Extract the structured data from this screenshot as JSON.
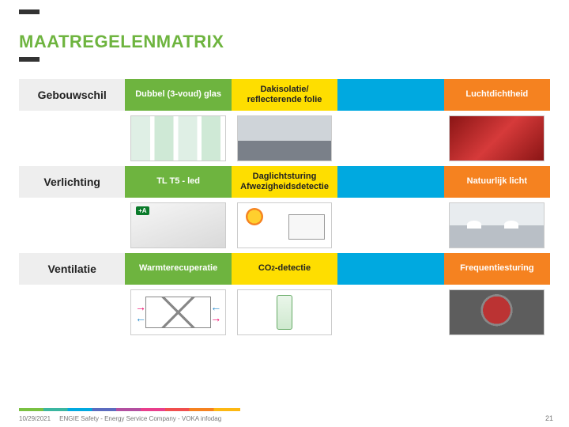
{
  "title": "MAATREGELENMATRIX",
  "colors": {
    "accent_green": "#6eb43f",
    "header_gray": "#eeeeee",
    "col_green": "#6eb43f",
    "col_yellow": "#fede00",
    "col_blue": "#00a9e0",
    "col_orange": "#f58220",
    "bar_dark": "#333333"
  },
  "matrix": {
    "categories": [
      "Gebouwschil",
      "Verlichting",
      "Ventilatie"
    ],
    "columns": [
      {
        "color_class": "c-green"
      },
      {
        "color_class": "c-yellow"
      },
      {
        "color_class": "c-blue"
      },
      {
        "color_class": "c-orange"
      }
    ],
    "rows": [
      {
        "category": "Gebouwschil",
        "cells": [
          "Dubbel (3-voud) glas",
          "Dakisolatie/ reflecterende folie",
          "",
          "Luchtdichtheid"
        ],
        "thumbs": [
          "glass",
          "roof",
          "",
          "red"
        ],
        "led_badge": ""
      },
      {
        "category": "Verlichting",
        "cells": [
          "TL T5 - led",
          "Daglichtsturing Afwezigheidsdetectie",
          "",
          "Natuurlijk licht"
        ],
        "thumbs": [
          "led",
          "sun",
          "",
          "skylights"
        ],
        "led_badge": "+A"
      },
      {
        "category": "Ventilatie",
        "cells": [
          "Warmterecuperatie",
          "CO2-detectie",
          "",
          "Frequentiesturing"
        ],
        "co2_label_prefix": "CO",
        "co2_label_sub": "2",
        "co2_label_suffix": "-detectie",
        "thumbs": [
          "hru",
          "co2",
          "",
          "pump"
        ],
        "led_badge": ""
      }
    ]
  },
  "footer": {
    "date": "10/29/2021",
    "text": "ENGIE Safety - Energy Service Company - VOKA infodag",
    "page": "21"
  }
}
